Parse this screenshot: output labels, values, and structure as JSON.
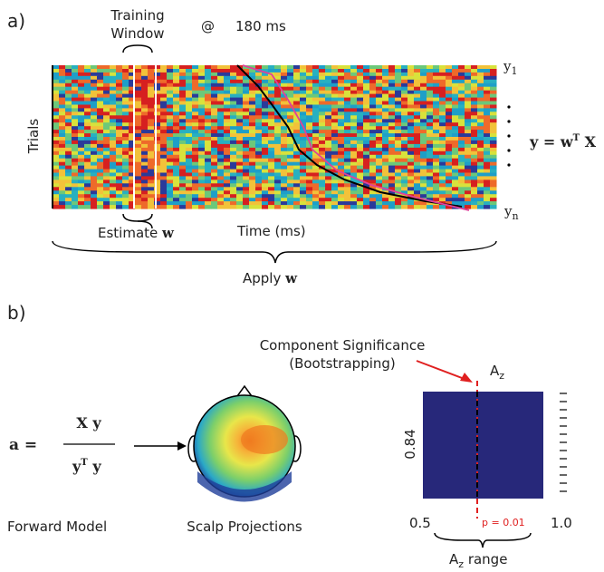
{
  "panel_a": {
    "label": "a)",
    "training_window": [
      "Training",
      "Window"
    ],
    "at_sign": "@",
    "time_point": "180 ms",
    "y_first": {
      "base": "y",
      "sub": "1"
    },
    "y_last": {
      "base": "y",
      "sub": "n"
    },
    "y_axis_label": "Trials",
    "equation": {
      "lhs": "y = ",
      "w": "w",
      "sup": "T",
      "x": " X"
    },
    "estimate": {
      "text": "Estimate ",
      "bold": "w"
    },
    "x_axis_label": "Time (ms)",
    "apply": {
      "text": "Apply ",
      "bold": "w"
    }
  },
  "panel_b": {
    "label": "b)",
    "significance": [
      "Component Significance",
      "(Bootstrapping)"
    ],
    "az": {
      "base": "A",
      "sub": "z"
    },
    "value": "0.84",
    "p_value": "p = 0.01",
    "range_min": "0.5",
    "range_max": "1.0",
    "az_range": {
      "base": "A",
      "sub": "z",
      "rest": " range"
    },
    "formula": {
      "lhs": "a =",
      "numerator": "X y",
      "denominator": "y",
      "sup": "T",
      "den_rest": " y"
    },
    "forward_model": "Forward Model",
    "scalp": "Scalp Projections"
  }
}
